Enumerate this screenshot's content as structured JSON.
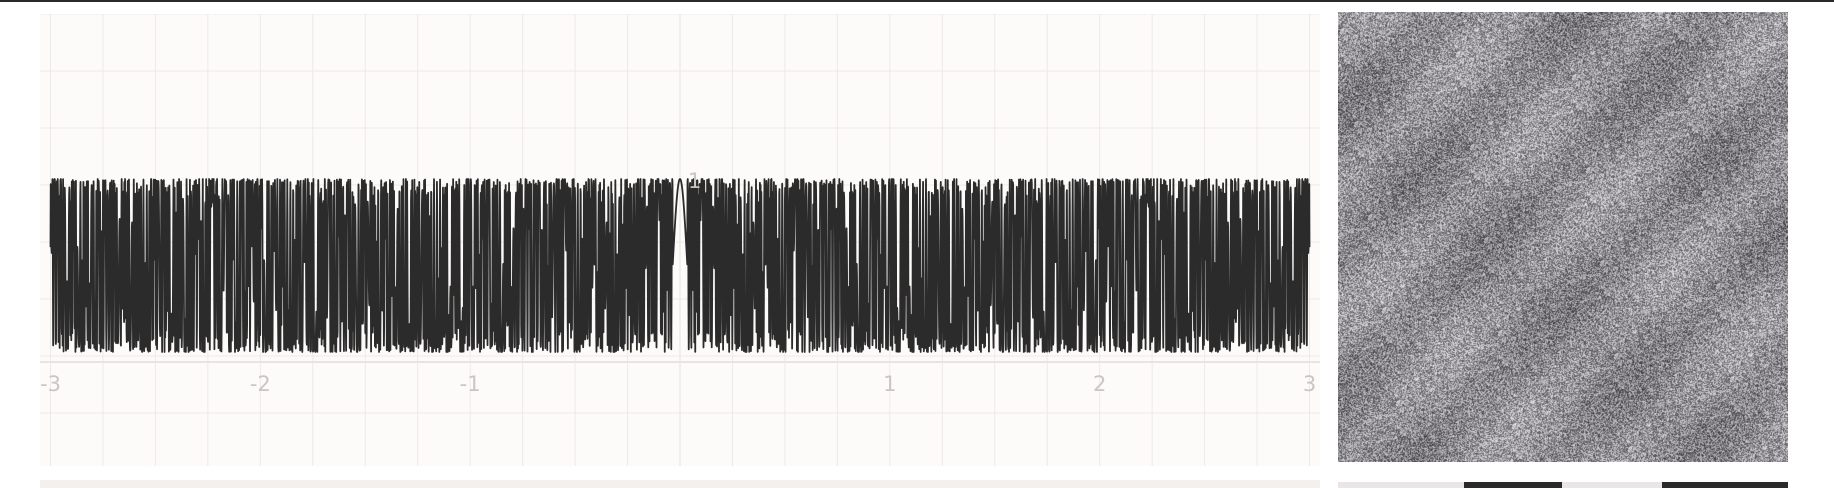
{
  "chart_data": {
    "type": "line",
    "title": "",
    "xlabel": "",
    "ylabel": "",
    "xlim": [
      -3.05,
      3.05
    ],
    "ylim": [
      -1.0,
      1.0
    ],
    "x_ticks": [
      "-3",
      "-2",
      "-1",
      "1",
      "2",
      "3"
    ],
    "x_tick_values": [
      -3,
      -2,
      -1,
      1,
      2,
      3
    ],
    "y_ticks": [
      "1"
    ],
    "y_tick_values": [
      1
    ],
    "grid": true,
    "series": [
      {
        "description_function": "cos(x * 10^k) style high-frequency oscillation",
        "peak_value": 1,
        "trough_value": -1,
        "x_range": [
          -3,
          3
        ]
      }
    ]
  },
  "texture": {
    "type": "noise-image",
    "base_color": "#7b7878"
  },
  "colors": {
    "line": "#2b2b2b",
    "grid": "#eee9e5",
    "tick_text": "#cbc5c0",
    "panel_bg": "#fdfbfa"
  },
  "bottom_swatches": [
    "#e8e6e6",
    "#2a2a2a",
    "#e8e6e6",
    "#2a2a2a"
  ]
}
